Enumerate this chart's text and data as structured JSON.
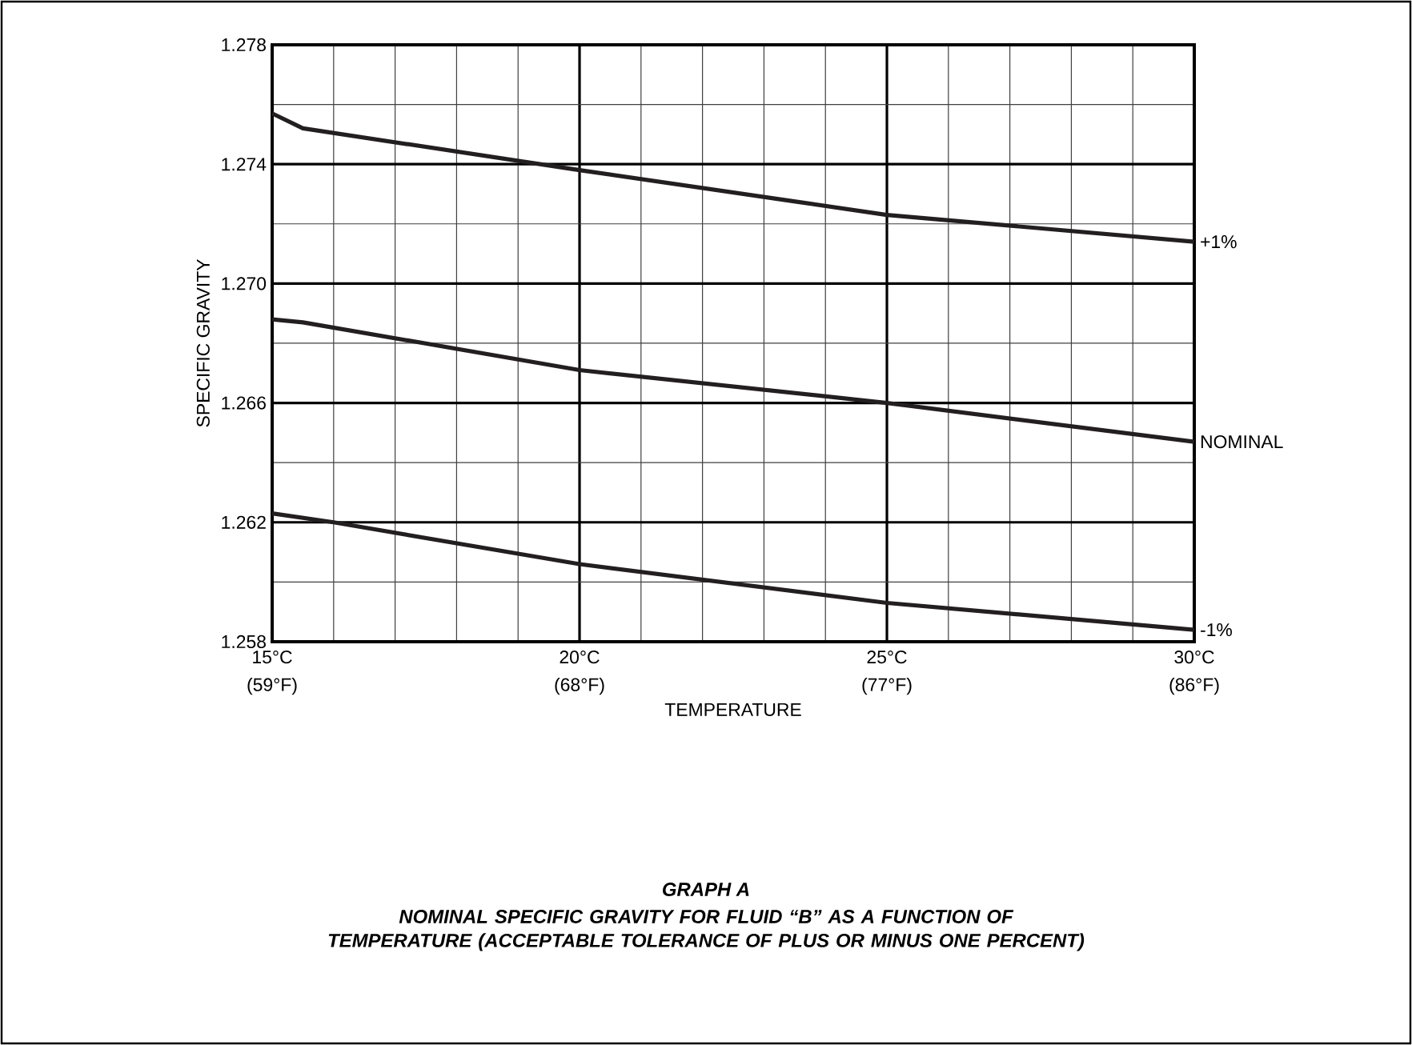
{
  "chart_data": {
    "type": "line",
    "title": "GRAPH A",
    "subtitle": "NOMINAL SPECIFIC GRAVITY FOR FLUID “B” AS A FUNCTION OF TEMPERATURE (ACCEPTABLE TOLERANCE OF PLUS OR MINUS ONE PERCENT)",
    "xlabel": "TEMPERATURE",
    "ylabel": "SPECIFIC GRAVITY",
    "xlim": [
      15,
      30
    ],
    "ylim": [
      1.258,
      1.278
    ],
    "xticks": [
      {
        "value": 15,
        "label": "15°C"
      },
      {
        "value": 20,
        "label": "20°C"
      },
      {
        "value": 25,
        "label": "25°C"
      },
      {
        "value": 30,
        "label": "30°C"
      }
    ],
    "x2lim": [
      59,
      86
    ],
    "x2ticks": [
      {
        "value": 59,
        "label": "(59°F)"
      },
      {
        "value": 68,
        "label": "(68°F)"
      },
      {
        "value": 77,
        "label": "(77°F)"
      },
      {
        "value": 86,
        "label": "(86°F)"
      }
    ],
    "yticks": [
      1.258,
      1.262,
      1.266,
      {
        "value": 1.27,
        "label": "1.270"
      },
      1.274,
      1.278
    ],
    "grid": true,
    "marker": "none",
    "line_style": "solid",
    "series": [
      {
        "name": "+1%",
        "color": "#231f20",
        "x": [
          15,
          15.5,
          20,
          25,
          30
        ],
        "values": [
          1.2757,
          1.2752,
          1.2738,
          1.2723,
          1.2714
        ]
      },
      {
        "name": "NOMINAL",
        "color": "#231f20",
        "x": [
          15,
          15.5,
          20,
          25,
          30
        ],
        "values": [
          1.2688,
          1.2687,
          1.2671,
          1.266,
          1.2647
        ]
      },
      {
        "name": "-1%",
        "color": "#231f20",
        "x": [
          15,
          16,
          20,
          25,
          30
        ],
        "values": [
          1.2623,
          1.262,
          1.2606,
          1.2593,
          1.2584
        ]
      }
    ]
  }
}
